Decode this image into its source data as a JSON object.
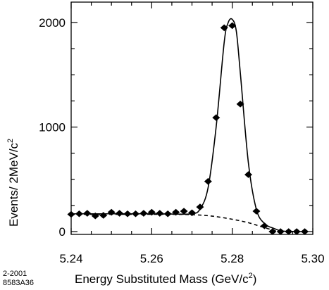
{
  "chart_data": {
    "type": "scatter",
    "xlabel_main": "Energy Substituted Mass  (GeV/c",
    "xlabel_sup": "2",
    "xlabel_close": ")",
    "ylabel_main": "Events/ 2MeV/c",
    "ylabel_sup": "2",
    "xlim": [
      5.24,
      5.3
    ],
    "ylim": [
      0,
      2100
    ],
    "x_ticks": [
      5.24,
      5.26,
      5.28,
      5.3
    ],
    "x_tick_labels": [
      "5.24",
      "5.26",
      "5.28",
      "5.30"
    ],
    "y_ticks": [
      0,
      1000,
      2000
    ],
    "y_tick_labels": [
      "0",
      "1000",
      "2000"
    ],
    "grid": false,
    "series": [
      {
        "role": "data points",
        "x": [
          5.24,
          5.242,
          5.244,
          5.246,
          5.248,
          5.25,
          5.252,
          5.254,
          5.256,
          5.258,
          5.26,
          5.262,
          5.264,
          5.266,
          5.268,
          5.27,
          5.272,
          5.274,
          5.276,
          5.278,
          5.28,
          5.282,
          5.284,
          5.286,
          5.288,
          5.29,
          5.292,
          5.294,
          5.296,
          5.298
        ],
        "y": [
          165,
          170,
          175,
          150,
          155,
          185,
          175,
          170,
          170,
          175,
          185,
          175,
          170,
          185,
          195,
          180,
          235,
          480,
          1090,
          1950,
          1970,
          1220,
          545,
          195,
          55,
          0,
          0,
          0,
          0,
          0
        ]
      },
      {
        "role": "signal plus background fit (solid)",
        "x": [
          5.24,
          5.25,
          5.26,
          5.265,
          5.27,
          5.272,
          5.274,
          5.276,
          5.278,
          5.279,
          5.28,
          5.281,
          5.282,
          5.284,
          5.286,
          5.288,
          5.289,
          5.29,
          5.291,
          5.292,
          5.294,
          5.298
        ],
        "y": [
          170,
          170,
          170,
          168,
          170,
          215,
          420,
          1000,
          1810,
          2000,
          2030,
          1920,
          1520,
          660,
          210,
          75,
          50,
          35,
          20,
          8,
          0,
          0
        ]
      },
      {
        "role": "background fit (dashed)",
        "x": [
          5.24,
          5.25,
          5.26,
          5.265,
          5.27,
          5.275,
          5.28,
          5.284,
          5.287,
          5.29,
          5.2915
        ],
        "y": [
          165,
          165,
          165,
          165,
          162,
          148,
          118,
          85,
          50,
          15,
          0
        ]
      }
    ]
  },
  "footnote": {
    "line1": "2-2001",
    "line2": "8583A36"
  }
}
